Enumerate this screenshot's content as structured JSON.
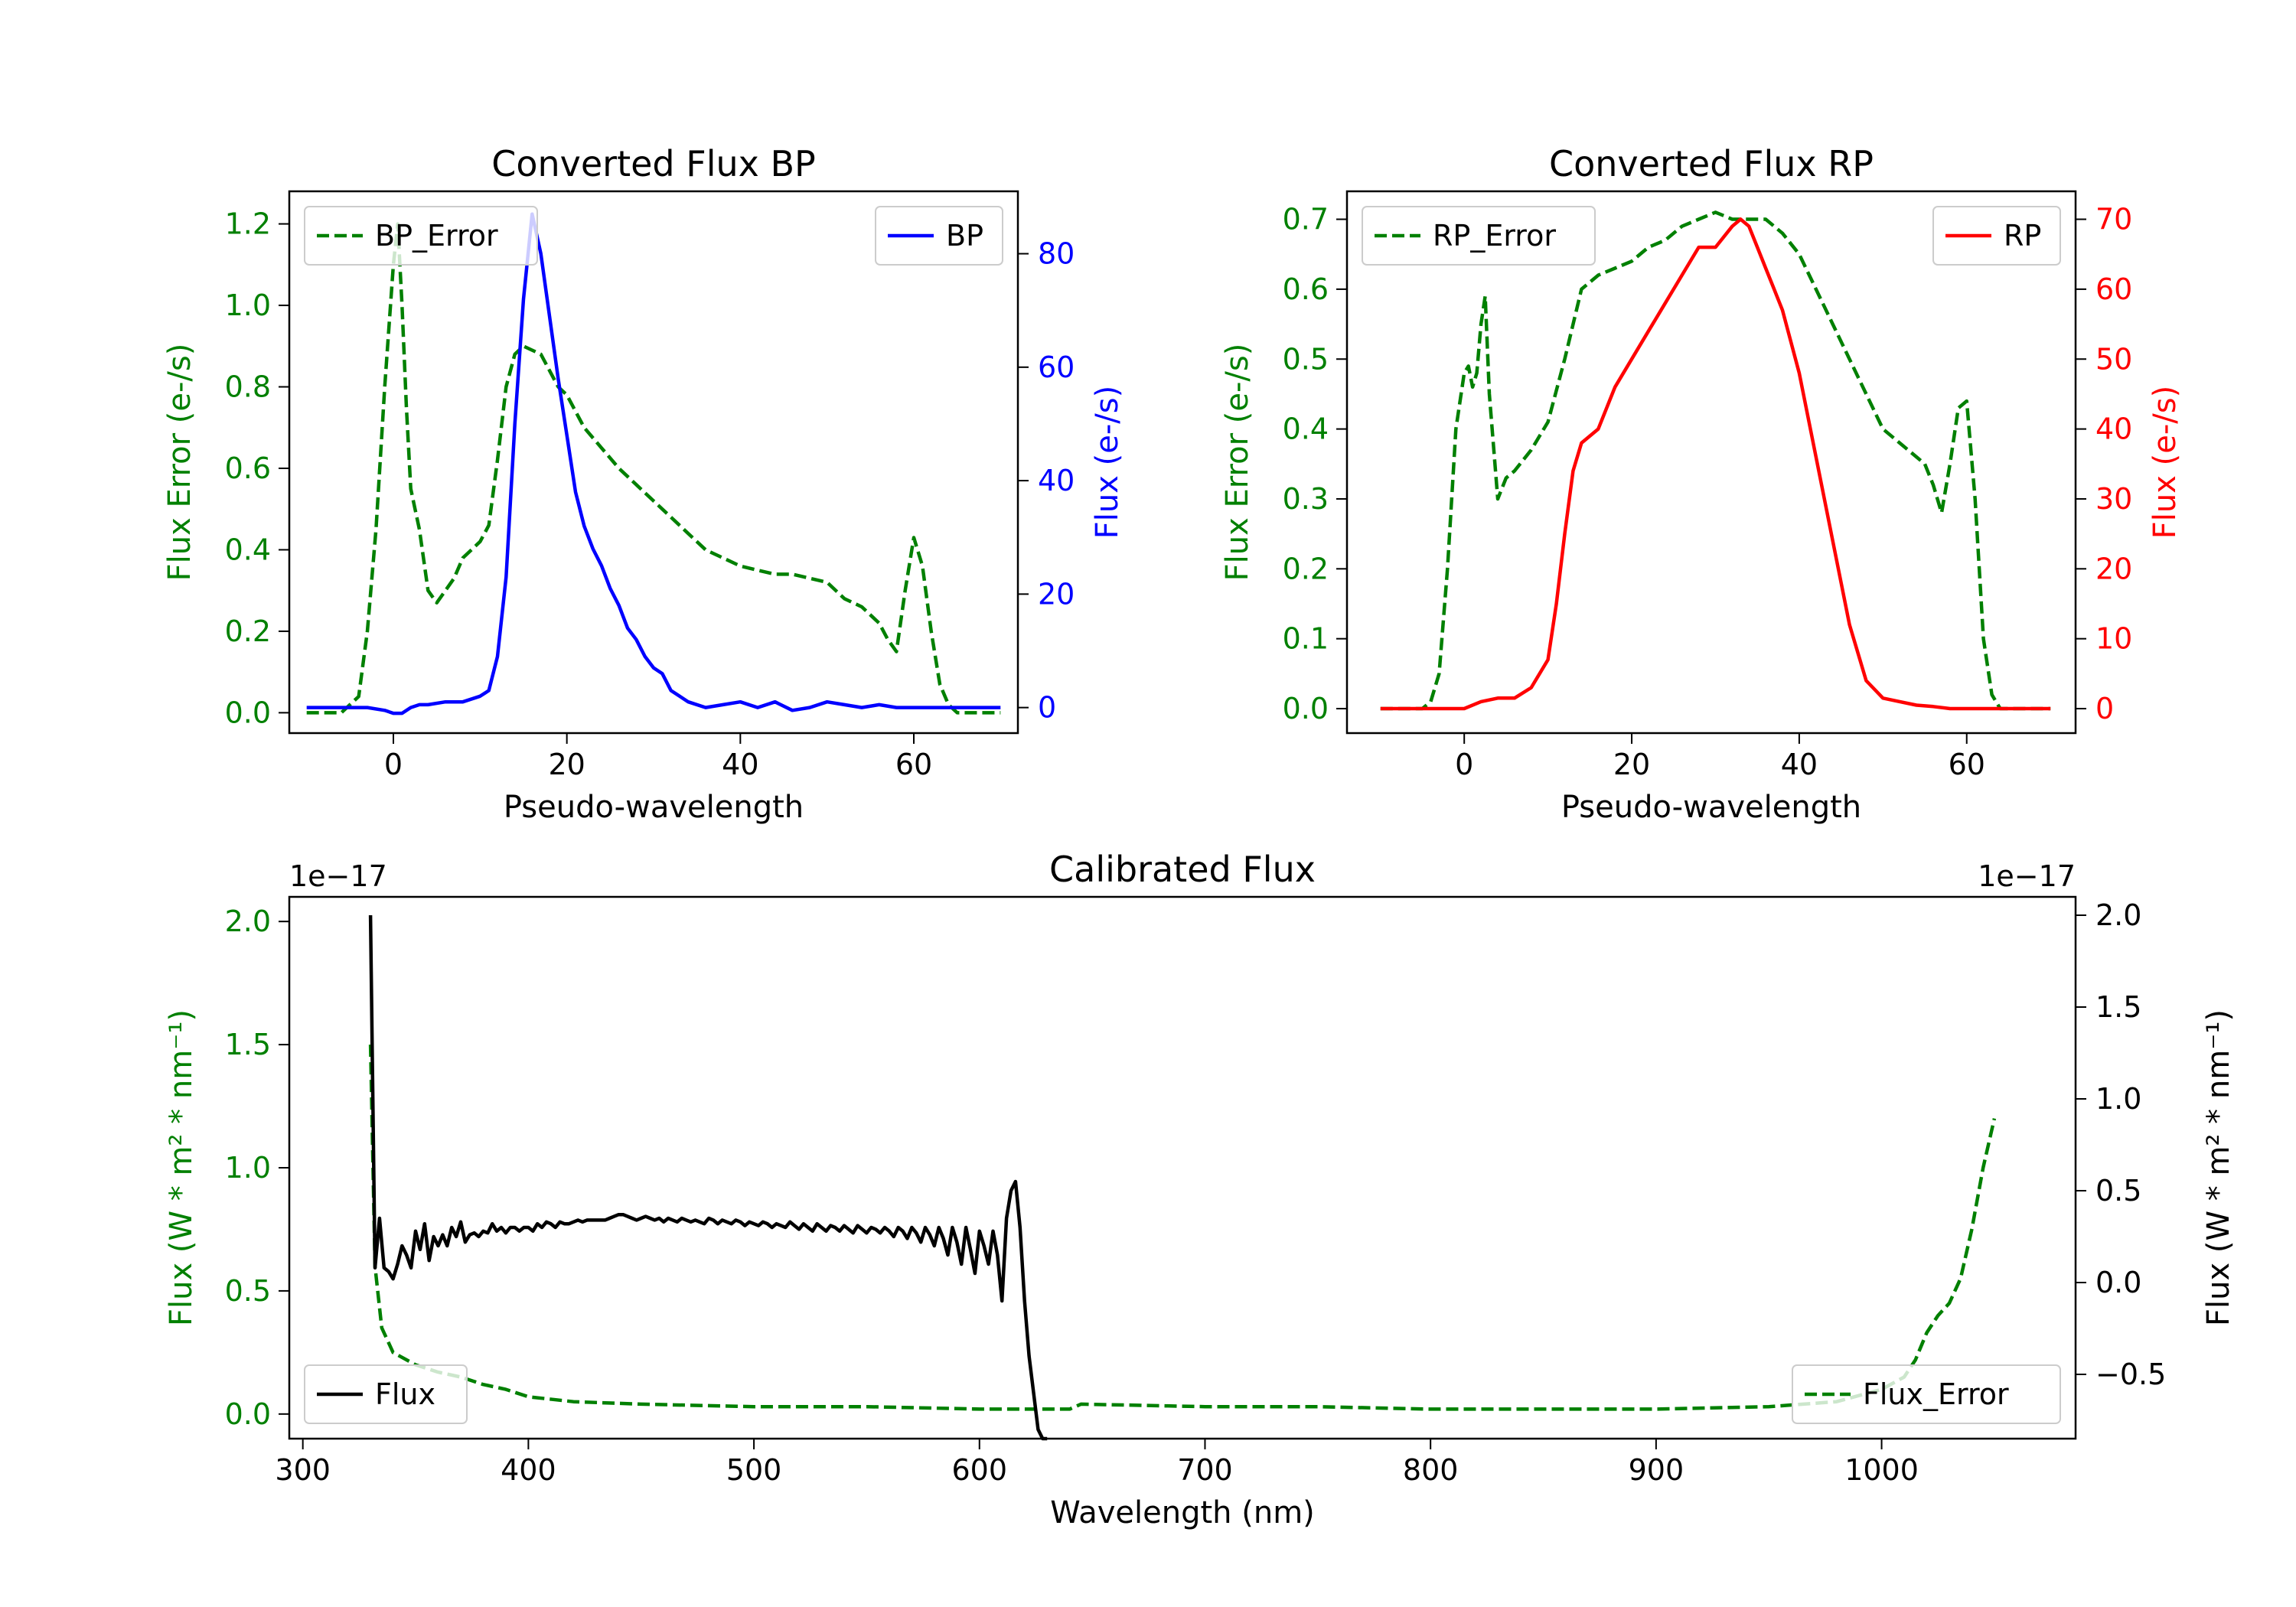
{
  "chart_data": [
    {
      "type": "line",
      "title": "Converted Flux BP",
      "xlabel": "Pseudo-wavelength",
      "xlim": [
        -12,
        72
      ],
      "xticks": [
        0,
        20,
        40,
        60
      ],
      "axes": {
        "left": {
          "label": "Flux Error (e-/s)",
          "color": "#008000",
          "ylim": [
            -0.05,
            1.28
          ],
          "ticks": [
            "0.0",
            "0.2",
            "0.4",
            "0.6",
            "0.8",
            "1.0",
            "1.2"
          ]
        },
        "right": {
          "label": "Flux (e-/s)",
          "color": "#0000ff",
          "ylim": [
            -4.5,
            91
          ],
          "ticks": [
            "0",
            "20",
            "40",
            "60",
            "80"
          ]
        }
      },
      "series": [
        {
          "name": "BP_Error",
          "axis": "left",
          "color": "#008000",
          "dash": true,
          "x": [
            -10,
            -6,
            -4,
            -3,
            -2,
            -1,
            0,
            0.5,
            1,
            1.5,
            2,
            2.5,
            3,
            4,
            5,
            6,
            7,
            8,
            9,
            10,
            11,
            12,
            13,
            14,
            15,
            16,
            17,
            18,
            19,
            20,
            21,
            22,
            24,
            26,
            28,
            30,
            32,
            34,
            36,
            38,
            40,
            42,
            44,
            46,
            48,
            50,
            52,
            54,
            56,
            57,
            58,
            59,
            60,
            61,
            62,
            63,
            64,
            65,
            66,
            68,
            70
          ],
          "y": [
            0.0,
            0.0,
            0.04,
            0.2,
            0.45,
            0.8,
            1.1,
            1.2,
            1.0,
            0.75,
            0.55,
            0.5,
            0.45,
            0.3,
            0.27,
            0.3,
            0.33,
            0.38,
            0.4,
            0.42,
            0.46,
            0.62,
            0.8,
            0.88,
            0.9,
            0.89,
            0.88,
            0.84,
            0.8,
            0.78,
            0.74,
            0.7,
            0.65,
            0.6,
            0.56,
            0.52,
            0.48,
            0.44,
            0.4,
            0.38,
            0.36,
            0.35,
            0.34,
            0.34,
            0.33,
            0.32,
            0.28,
            0.26,
            0.22,
            0.18,
            0.15,
            0.3,
            0.43,
            0.36,
            0.2,
            0.07,
            0.02,
            0.0,
            0.0,
            0.0,
            0.0
          ]
        },
        {
          "name": "BP",
          "axis": "right",
          "color": "#0000ff",
          "dash": false,
          "x": [
            -10,
            -6,
            -3,
            -1,
            0,
            1,
            2,
            3,
            4,
            6,
            8,
            10,
            11,
            12,
            13,
            14,
            15,
            16,
            17,
            18,
            19,
            20,
            21,
            22,
            23,
            24,
            25,
            26,
            27,
            28,
            29,
            30,
            31,
            32,
            34,
            36,
            38,
            40,
            42,
            44,
            46,
            48,
            50,
            52,
            54,
            56,
            58,
            60,
            62,
            64,
            66,
            68,
            70
          ],
          "y": [
            0,
            0,
            0,
            -0.5,
            -1,
            -1,
            0,
            0.5,
            0.5,
            1,
            1,
            2,
            3,
            9,
            23,
            50,
            72,
            87,
            80,
            69,
            58,
            48,
            38,
            32,
            28,
            25,
            21,
            18,
            14,
            12,
            9,
            7,
            6,
            3,
            1,
            0,
            0.5,
            1,
            0,
            1,
            -0.5,
            0,
            1,
            0.5,
            0,
            0.5,
            0,
            0,
            0,
            0,
            0,
            0,
            0
          ]
        }
      ],
      "legend": [
        {
          "label": "BP_Error",
          "position": "upper left"
        },
        {
          "label": "BP",
          "position": "upper right"
        }
      ]
    },
    {
      "type": "line",
      "title": "Converted Flux RP",
      "xlabel": "Pseudo-wavelength",
      "xlim": [
        -14,
        73
      ],
      "xticks": [
        0,
        20,
        40,
        60
      ],
      "axes": {
        "left": {
          "label": "Flux Error (e-/s)",
          "color": "#008000",
          "ylim": [
            -0.035,
            0.74
          ],
          "ticks": [
            "0.0",
            "0.1",
            "0.2",
            "0.3",
            "0.4",
            "0.5",
            "0.6",
            "0.7"
          ]
        },
        "right": {
          "label": "Flux (e-/s)",
          "color": "#ff0000",
          "ylim": [
            -3.5,
            74
          ],
          "ticks": [
            "0",
            "10",
            "20",
            "30",
            "40",
            "50",
            "60",
            "70"
          ]
        }
      },
      "series": [
        {
          "name": "RP_Error",
          "axis": "left",
          "color": "#008000",
          "dash": true,
          "x": [
            -10,
            -5,
            -4,
            -3,
            -2,
            -1,
            0,
            0.5,
            1,
            1.5,
            2,
            2.5,
            3,
            4,
            5,
            6,
            8,
            10,
            12,
            14,
            16,
            18,
            20,
            22,
            24,
            26,
            28,
            30,
            32,
            34,
            36,
            38,
            40,
            42,
            44,
            46,
            48,
            50,
            52,
            54,
            55,
            56,
            57,
            58,
            59,
            60,
            61,
            62,
            63,
            64,
            66,
            68,
            70
          ],
          "y": [
            0,
            0,
            0.01,
            0.05,
            0.2,
            0.4,
            0.48,
            0.49,
            0.46,
            0.48,
            0.55,
            0.59,
            0.45,
            0.3,
            0.33,
            0.34,
            0.37,
            0.41,
            0.5,
            0.6,
            0.62,
            0.63,
            0.64,
            0.66,
            0.67,
            0.69,
            0.7,
            0.71,
            0.7,
            0.7,
            0.7,
            0.68,
            0.65,
            0.6,
            0.55,
            0.5,
            0.45,
            0.4,
            0.38,
            0.36,
            0.35,
            0.32,
            0.28,
            0.35,
            0.43,
            0.44,
            0.3,
            0.1,
            0.02,
            0.0,
            0.0,
            0.0,
            0.0
          ]
        },
        {
          "name": "RP",
          "axis": "right",
          "color": "#ff0000",
          "dash": false,
          "x": [
            -10,
            -5,
            -2,
            0,
            2,
            4,
            6,
            8,
            10,
            11,
            12,
            13,
            14,
            16,
            18,
            20,
            22,
            24,
            26,
            28,
            30,
            32,
            33,
            34,
            35,
            36,
            37,
            38,
            40,
            42,
            44,
            46,
            48,
            50,
            52,
            54,
            56,
            58,
            60,
            62,
            64,
            66,
            68,
            70
          ],
          "y": [
            0,
            0,
            0,
            0,
            1,
            1.5,
            1.5,
            3,
            7,
            15,
            25,
            34,
            38,
            40,
            46,
            50,
            54,
            58,
            62,
            66,
            66,
            69,
            70,
            69,
            66,
            63,
            60,
            57,
            48,
            36,
            24,
            12,
            4,
            1.5,
            1,
            0.5,
            0.3,
            0,
            0,
            0,
            0,
            0,
            0,
            0
          ]
        }
      ],
      "legend": [
        {
          "label": "RP_Error",
          "position": "upper left"
        },
        {
          "label": "RP",
          "position": "upper right"
        }
      ]
    },
    {
      "type": "line",
      "title": "Calibrated Flux",
      "xlabel": "Wavelength (nm)",
      "xlim": [
        294,
        1086
      ],
      "xticks": [
        300,
        400,
        500,
        600,
        700,
        800,
        900,
        1000
      ],
      "axes": {
        "left": {
          "label": "Flux (W * m² * nm⁻¹)",
          "color": "#008000",
          "ylim": [
            -0.1,
            2.1
          ],
          "ticks": [
            "0.0",
            "0.5",
            "1.0",
            "1.5",
            "2.0"
          ],
          "offset": "1e−17"
        },
        "right": {
          "label": "Flux (W * m² * nm⁻¹)",
          "color": "#000000",
          "ylim": [
            -0.85,
            2.1
          ],
          "ticks": [
            "−0.5",
            "0.0",
            "0.5",
            "1.0",
            "1.5",
            "2.0"
          ],
          "offset": "1e−17"
        }
      },
      "series": [
        {
          "name": "Flux_Error",
          "axis": "left",
          "color": "#008000",
          "dash": true,
          "x": [
            330,
            332,
            335,
            340,
            350,
            360,
            370,
            380,
            390,
            400,
            420,
            450,
            500,
            550,
            600,
            640,
            645,
            700,
            750,
            800,
            850,
            900,
            950,
            980,
            1000,
            1010,
            1015,
            1020,
            1025,
            1030,
            1035,
            1040,
            1045,
            1050
          ],
          "y": [
            1.5,
            0.6,
            0.35,
            0.25,
            0.2,
            0.17,
            0.15,
            0.12,
            0.1,
            0.07,
            0.05,
            0.04,
            0.03,
            0.03,
            0.02,
            0.02,
            0.04,
            0.03,
            0.03,
            0.02,
            0.02,
            0.02,
            0.03,
            0.05,
            0.1,
            0.15,
            0.22,
            0.33,
            0.4,
            0.45,
            0.55,
            0.75,
            1.0,
            1.2
          ]
        },
        {
          "name": "Flux",
          "axis": "right",
          "color": "#000000",
          "dash": false,
          "x_start": 330,
          "x_step": 2,
          "y": [
            2.0,
            0.08,
            0.35,
            0.08,
            0.06,
            0.02,
            0.1,
            0.2,
            0.15,
            0.08,
            0.28,
            0.18,
            0.32,
            0.12,
            0.25,
            0.2,
            0.26,
            0.2,
            0.3,
            0.25,
            0.33,
            0.22,
            0.26,
            0.27,
            0.25,
            0.28,
            0.27,
            0.32,
            0.28,
            0.3,
            0.27,
            0.3,
            0.3,
            0.28,
            0.3,
            0.3,
            0.28,
            0.32,
            0.3,
            0.33,
            0.32,
            0.3,
            0.33,
            0.32,
            0.32,
            0.33,
            0.34,
            0.33,
            0.34,
            0.34,
            0.34,
            0.34,
            0.34,
            0.35,
            0.36,
            0.37,
            0.37,
            0.36,
            0.35,
            0.34,
            0.35,
            0.36,
            0.35,
            0.34,
            0.35,
            0.33,
            0.35,
            0.34,
            0.33,
            0.35,
            0.34,
            0.33,
            0.34,
            0.33,
            0.32,
            0.35,
            0.34,
            0.32,
            0.34,
            0.33,
            0.32,
            0.34,
            0.33,
            0.31,
            0.33,
            0.32,
            0.31,
            0.33,
            0.32,
            0.3,
            0.32,
            0.31,
            0.3,
            0.33,
            0.31,
            0.29,
            0.32,
            0.3,
            0.28,
            0.32,
            0.3,
            0.28,
            0.31,
            0.3,
            0.28,
            0.31,
            0.29,
            0.27,
            0.31,
            0.29,
            0.27,
            0.3,
            0.29,
            0.27,
            0.3,
            0.28,
            0.25,
            0.3,
            0.28,
            0.24,
            0.3,
            0.27,
            0.22,
            0.3,
            0.26,
            0.2,
            0.3,
            0.24,
            0.15,
            0.3,
            0.22,
            0.1,
            0.3,
            0.18,
            0.05,
            0.28,
            0.2,
            0.1,
            0.28,
            0.15,
            -0.1,
            0.35,
            0.5,
            0.55,
            0.3,
            -0.1,
            -0.4,
            -0.6,
            -0.8,
            -0.85,
            -0.85
          ]
        }
      ],
      "legend": [
        {
          "label": "Flux",
          "position": "lower left"
        },
        {
          "label": "Flux_Error",
          "position": "lower right"
        }
      ]
    }
  ]
}
